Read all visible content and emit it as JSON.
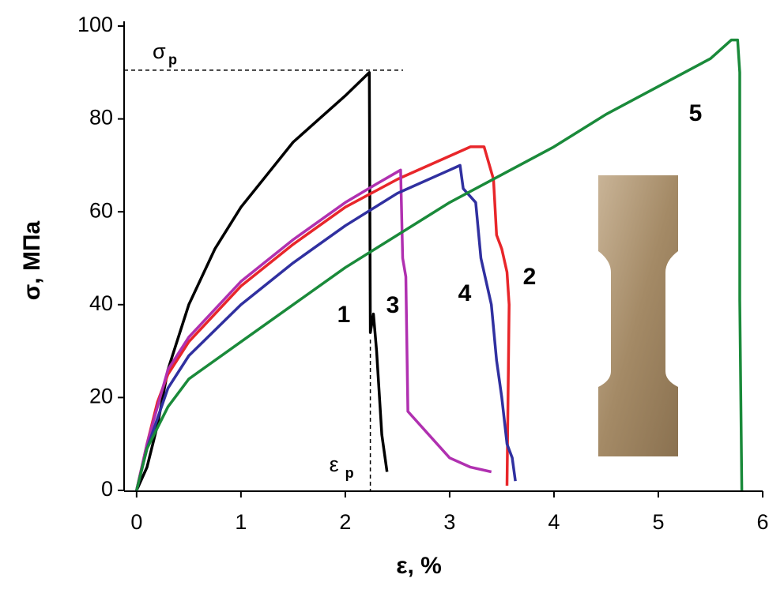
{
  "chart_data": {
    "type": "line",
    "xlabel": "ε, %",
    "ylabel": "σ, МПа",
    "xlim": [
      -0.12,
      6
    ],
    "xticks": [
      0,
      1,
      2,
      3,
      4,
      5,
      6
    ],
    "ylim": [
      0,
      100
    ],
    "yticks": [
      0,
      20,
      40,
      60,
      80,
      100
    ],
    "annotations": [
      {
        "text": "σ",
        "subscript": "p",
        "y": 90.5
      },
      {
        "text": "ε",
        "subscript": "p",
        "x": 2.24
      }
    ],
    "series": [
      {
        "name": "1",
        "color": "#000000",
        "x": [
          0,
          0.1,
          0.2,
          0.3,
          0.5,
          0.75,
          1,
          1.25,
          1.5,
          1.75,
          2,
          2.23,
          2.24,
          2.27,
          2.3,
          2.35,
          2.4
        ],
        "values": [
          0,
          5,
          14,
          26,
          40,
          52,
          61,
          68,
          75,
          80,
          85,
          90,
          34,
          38,
          30,
          12,
          4
        ]
      },
      {
        "name": "2",
        "color": "#e8262a",
        "x": [
          0,
          0.1,
          0.2,
          0.3,
          0.5,
          1,
          1.5,
          2,
          2.5,
          3,
          3.2,
          3.33,
          3.42,
          3.45,
          3.5,
          3.55,
          3.57,
          3.55
        ],
        "values": [
          0,
          10,
          19,
          25,
          32,
          44,
          53,
          61,
          67,
          72,
          74,
          74,
          67,
          55,
          52,
          47,
          40,
          1
        ]
      },
      {
        "name": "3",
        "color": "#b030b0",
        "x": [
          0,
          0.1,
          0.3,
          0.5,
          1,
          1.5,
          2,
          2.3,
          2.53,
          2.55,
          2.58,
          2.6,
          2.8,
          3,
          3.2,
          3.4
        ],
        "values": [
          0,
          10,
          26,
          33,
          45,
          54,
          62,
          66,
          69,
          50,
          46,
          17,
          12,
          7,
          5,
          4
        ]
      },
      {
        "name": "4",
        "color": "#3030a0",
        "x": [
          0,
          0.1,
          0.3,
          0.5,
          1,
          1.5,
          2,
          2.5,
          3,
          3.1,
          3.13,
          3.25,
          3.3,
          3.4,
          3.45,
          3.5,
          3.55,
          3.6,
          3.63
        ],
        "values": [
          0,
          9,
          22,
          29,
          40,
          49,
          57,
          64,
          69,
          70,
          65,
          62,
          50,
          40,
          28,
          20,
          10,
          7,
          2
        ]
      },
      {
        "name": "5",
        "color": "#1a8a3a",
        "x": [
          0,
          0.1,
          0.3,
          0.5,
          1,
          1.5,
          2,
          2.5,
          3,
          3.5,
          4,
          4.5,
          5,
          5.5,
          5.7,
          5.76,
          5.78,
          5.78,
          5.8
        ],
        "values": [
          0,
          9,
          18,
          24,
          32,
          40,
          48,
          55,
          62,
          68,
          74,
          81,
          87,
          93,
          97,
          97,
          90,
          41,
          0
        ]
      }
    ]
  }
}
